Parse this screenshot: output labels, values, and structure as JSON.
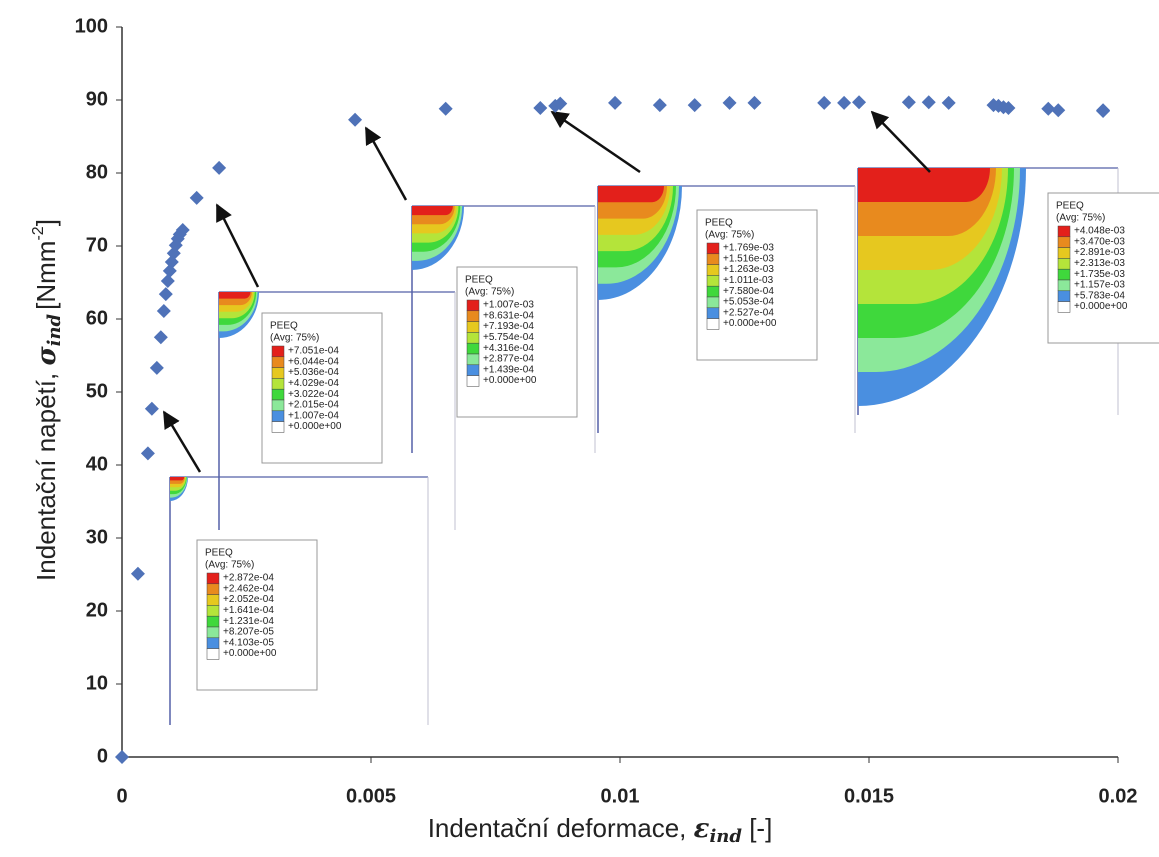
{
  "chart_data": {
    "type": "scatter",
    "x_label": {
      "text": "Indentační deformace, ",
      "symbol": "ε",
      "sub": "ind",
      "unit": " [-]"
    },
    "y_label": {
      "text": "Indentační napětí, ",
      "symbol": "σ",
      "sub": "ind",
      "unit": "[Nmm",
      "sup": "-2",
      "close": "]"
    },
    "xlim": [
      0,
      0.02
    ],
    "xticks": [
      0,
      0.005,
      0.01,
      0.015,
      0.02
    ],
    "ylim": [
      0,
      100
    ],
    "yticks": [
      0,
      10,
      20,
      30,
      40,
      50,
      60,
      70,
      80,
      90,
      100
    ],
    "series": [
      {
        "color": "#4f72b8",
        "x": [
          0,
          0.00032,
          0.00052,
          0.0006,
          0.0007,
          0.00078,
          0.00084,
          0.00088,
          0.00092,
          0.00096,
          0.001,
          0.00104,
          0.00108,
          0.00112,
          0.00116,
          0.00122,
          0.0015,
          0.00195,
          0.00468,
          0.0065,
          0.0084,
          0.0087,
          0.0088,
          0.0099,
          0.0108,
          0.0115,
          0.0122,
          0.0127,
          0.0141,
          0.0145,
          0.0148,
          0.0158,
          0.0162,
          0.0166,
          0.0175,
          0.0176,
          0.0177,
          0.0178,
          0.0186,
          0.0188,
          0.0197,
          0.0197
        ],
        "values": [
          0,
          25.1,
          41.6,
          47.7,
          53.3,
          57.5,
          61.1,
          63.4,
          65.2,
          66.6,
          67.8,
          69,
          70.1,
          71,
          71.6,
          72.2,
          76.6,
          80.7,
          87.3,
          88.8,
          88.9,
          89.2,
          89.5,
          89.6,
          89.3,
          89.3,
          89.6,
          89.6,
          89.6,
          89.6,
          89.7,
          89.7,
          89.7,
          89.6,
          89.3,
          89.2,
          89,
          88.9,
          88.8,
          88.6,
          88.6,
          88.5
        ]
      }
    ],
    "legend_colors": [
      "#e3201b",
      "#e88a1e",
      "#e6c81f",
      "#b4e43a",
      "#3fd83c",
      "#8be89a",
      "#4a8fe0",
      "#ffffff"
    ],
    "insets": [
      {
        "title": "PEEQ",
        "subtitle": "(Avg: 75%)",
        "levels": [
          "+2.872e-04",
          "+2.462e-04",
          "+2.052e-04",
          "+1.641e-04",
          "+1.231e-04",
          "+8.207e-05",
          "+4.103e-05",
          "+0.000e+00"
        ]
      },
      {
        "title": "PEEQ",
        "subtitle": "(Avg: 75%)",
        "levels": [
          "+7.051e-04",
          "+6.044e-04",
          "+5.036e-04",
          "+4.029e-04",
          "+3.022e-04",
          "+2.015e-04",
          "+1.007e-04",
          "+0.000e+00"
        ]
      },
      {
        "title": "PEEQ",
        "subtitle": "(Avg: 75%)",
        "levels": [
          "+1.007e-03",
          "+8.631e-04",
          "+7.193e-04",
          "+5.754e-04",
          "+4.316e-04",
          "+2.877e-04",
          "+1.439e-04",
          "+0.000e+00"
        ]
      },
      {
        "title": "PEEQ",
        "subtitle": "(Avg: 75%)",
        "levels": [
          "+1.769e-03",
          "+1.516e-03",
          "+1.263e-03",
          "+1.011e-03",
          "+7.580e-04",
          "+5.053e-04",
          "+2.527e-04",
          "+0.000e+00"
        ]
      },
      {
        "title": "PEEQ",
        "subtitle": "(Avg: 75%)",
        "levels": [
          "+4.048e-03",
          "+3.470e-03",
          "+2.891e-03",
          "+2.313e-03",
          "+1.735e-03",
          "+1.157e-03",
          "+5.783e-04",
          "+0.000e+00"
        ]
      }
    ]
  }
}
